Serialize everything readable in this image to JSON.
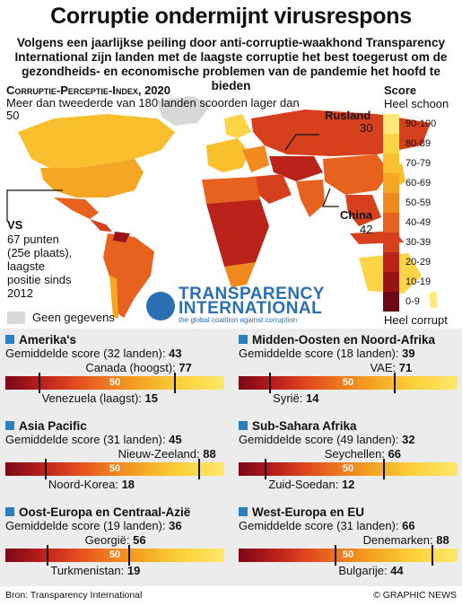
{
  "header": {
    "title": "Corruptie ondermijnt virusrespons",
    "subtitle": "Volgens een jaarlijkse peiling door anti-corruptie-waakhond Transparency International zijn landen met de laagste corruptie het best toegerust om de gezondheids- en economische problemen van de pandemie het hoofd te bieden"
  },
  "map": {
    "title": "Corruptie-Perceptie-Index, 2020",
    "subtitle": "Meer dan tweederde van 180 landen scoorden lager dan 50",
    "no_data": "Geen gegevens",
    "callouts": {
      "rusland_name": "Rusland",
      "rusland_score": "30",
      "china_name": "China",
      "china_score": "42",
      "vs_name": "VS",
      "vs_text": "67 punten (25e plaats), laagste positie sinds 2012"
    },
    "legend": {
      "title": "Score",
      "top": "Heel schoon",
      "bottom": "Heel corrupt",
      "bands": [
        "90-100",
        "80-89",
        "70-79",
        "60-69",
        "50-59",
        "40-49",
        "30-39",
        "20-29",
        "10-19",
        "0-9"
      ],
      "colors": [
        "#ffe97a",
        "#fcd547",
        "#f9bf2c",
        "#f5a623",
        "#f08a1f",
        "#e8621f",
        "#d6401d",
        "#bb2219",
        "#961318",
        "#6b0a14"
      ]
    },
    "ti": {
      "name1": "TRANSPARENCY",
      "name2": "INTERNATIONAL",
      "tagline": "the global coalition against corruption"
    }
  },
  "regions": [
    {
      "name": "Amerika's",
      "avg_label": "Gemiddelde score (32 landen):",
      "avg": "43",
      "max_label": "Canada (hoogst):",
      "max": "77",
      "max_val": 77,
      "min_label": "Venezuela (laagst):",
      "min": "15",
      "min_val": 15,
      "fifty": "50"
    },
    {
      "name": "Midden-Oosten en Noord-Afrika",
      "avg_label": "Gemiddelde score (18 landen):",
      "avg": "39",
      "max_label": "VAE:",
      "max": "71",
      "max_val": 71,
      "min_label": "Syrië:",
      "min": "14",
      "min_val": 14,
      "fifty": "50"
    },
    {
      "name": "Asia Pacific",
      "avg_label": "Gemiddelde score (31 landen):",
      "avg": "45",
      "max_label": "Nieuw-Zeeland:",
      "max": "88",
      "max_val": 88,
      "min_label": "Noord-Korea:",
      "min": "18",
      "min_val": 18,
      "fifty": "50"
    },
    {
      "name": "Sub-Sahara Afrika",
      "avg_label": "Gemiddelde score (49 landen):",
      "avg": "32",
      "max_label": "Seychellen:",
      "max": "66",
      "max_val": 66,
      "min_label": "Zuid-Soedan:",
      "min": "12",
      "min_val": 12,
      "fifty": "50"
    },
    {
      "name": "Oost-Europa en Centraal-Azië",
      "avg_label": "Gemiddelde score (19 landen):",
      "avg": "36",
      "max_label": "Georgië:",
      "max": "56",
      "max_val": 56,
      "min_label": "Turkmenistan:",
      "min": "19",
      "min_val": 19,
      "fifty": "50"
    },
    {
      "name": "West-Europa en EU",
      "avg_label": "Gemiddelde score (31 landen):",
      "avg": "66",
      "max_label": "Denemarken:",
      "max": "88",
      "max_val": 88,
      "min_label": "Bulgarije:",
      "min": "44",
      "min_val": 44,
      "fifty": "50"
    }
  ],
  "footer": {
    "source": "Bron: Transparency International",
    "credit": "© GRAPHIC NEWS"
  }
}
